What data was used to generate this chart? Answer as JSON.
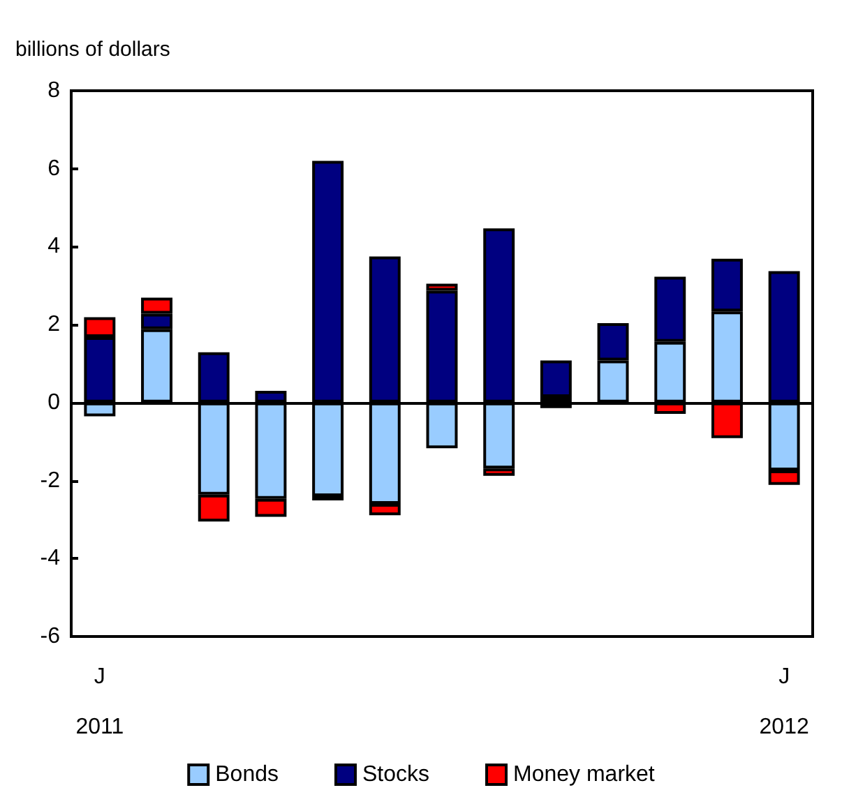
{
  "chart_data": {
    "type": "bar",
    "ylabel": "billions of dollars",
    "stacked": true,
    "categories": [
      "J\n\n2011",
      null,
      null,
      null,
      null,
      null,
      null,
      null,
      null,
      null,
      null,
      null,
      "J\n\n2012"
    ],
    "series": [
      {
        "name": "Bonds",
        "color": "#99ccff",
        "values": [
          -0.35,
          1.88,
          -2.36,
          -2.47,
          -2.4,
          -2.6,
          -1.17,
          -1.69,
          0.14,
          1.08,
          1.56,
          2.34,
          -1.74
        ]
      },
      {
        "name": "Stocks",
        "color": "#000080",
        "values": [
          1.68,
          0.4,
          1.29,
          0.3,
          6.2,
          3.75,
          2.87,
          4.47,
          0.94,
          0.96,
          1.67,
          1.35,
          3.37
        ]
      },
      {
        "name": "Money market",
        "color": "#ff0000",
        "values": [
          0.51,
          0.41,
          -0.69,
          -0.46,
          -0.11,
          -0.29,
          0.18,
          -0.19,
          -0.14,
          null,
          -0.29,
          -0.91,
          -0.37
        ]
      }
    ],
    "ylim": [
      -6,
      8
    ],
    "yticks": [
      -6,
      -4,
      -2,
      0,
      2,
      4,
      6,
      8
    ],
    "legend": "bottom"
  }
}
